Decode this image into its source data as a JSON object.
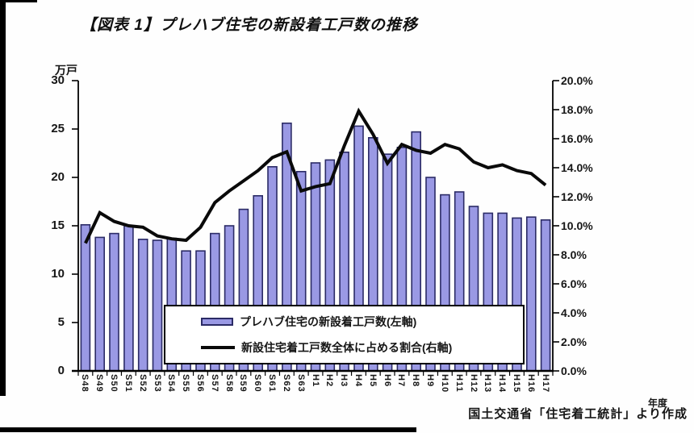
{
  "page": {
    "title": "【図表 1】プレハブ住宅の新設着工戸数の推移",
    "left_axis_unit": "万戸",
    "x_axis_unit": "年度",
    "source_note": "国土交通省「住宅着工統計」より作成"
  },
  "legend": {
    "bar_label": "プレハブ住宅の新設着工戸数(左軸)",
    "line_label": "新設住宅着工戸数全体に占める割合(右軸)"
  },
  "colors": {
    "bar_fill": "#9a99e4",
    "bar_border": "#2b2b66",
    "line": "#0a0a0a",
    "axis": "#000000"
  },
  "chart_data": {
    "type": "bar",
    "title": "【図表 1】プレハブ住宅の新設着工戸数の推移",
    "xlabel": "年度",
    "categories": [
      "S48",
      "S49",
      "S50",
      "S51",
      "S52",
      "S53",
      "S54",
      "S55",
      "S56",
      "S57",
      "S58",
      "S59",
      "S60",
      "S61",
      "S62",
      "S63",
      "H1",
      "H2",
      "H3",
      "H4",
      "H5",
      "H6",
      "H7",
      "H8",
      "H9",
      "H10",
      "H11",
      "H12",
      "H13",
      "H14",
      "H15",
      "H16",
      "H17"
    ],
    "series": [
      {
        "name": "プレハブ住宅の新設着工戸数(左軸)",
        "type": "bar",
        "axis": "left",
        "unit": "万戸",
        "values": [
          15.1,
          13.8,
          14.2,
          15.0,
          13.6,
          13.5,
          13.7,
          12.4,
          12.4,
          14.2,
          15.0,
          16.7,
          18.1,
          21.1,
          25.6,
          20.6,
          21.5,
          21.8,
          22.6,
          25.3,
          24.1,
          22.4,
          23.1,
          24.7,
          20.0,
          18.2,
          18.5,
          17.0,
          16.3,
          16.3,
          15.8,
          15.9,
          15.6
        ]
      },
      {
        "name": "新設住宅着工戸数全体に占める割合(右軸)",
        "type": "line",
        "axis": "right",
        "unit": "%",
        "values": [
          8.8,
          10.9,
          10.3,
          10.0,
          9.9,
          9.3,
          9.1,
          9.0,
          9.9,
          11.6,
          12.4,
          13.1,
          13.8,
          14.7,
          15.1,
          12.4,
          12.7,
          12.9,
          15.5,
          17.9,
          16.3,
          14.3,
          15.6,
          15.2,
          15.0,
          15.6,
          15.3,
          14.4,
          14.0,
          14.2,
          13.8,
          13.6,
          12.8
        ]
      }
    ],
    "left_axis": {
      "min": 0,
      "max": 30,
      "step": 5,
      "ticks": [
        "30",
        "25",
        "20",
        "15",
        "10",
        "5",
        "0"
      ]
    },
    "right_axis": {
      "min": 0,
      "max": 20,
      "step": 2,
      "ticks": [
        "20.0%",
        "18.0%",
        "16.0%",
        "14.0%",
        "12.0%",
        "10.0%",
        "8.0%",
        "6.0%",
        "4.0%",
        "2.0%",
        "0.0%"
      ]
    },
    "grid": false,
    "legend_position": "bottom-center-overlay"
  }
}
